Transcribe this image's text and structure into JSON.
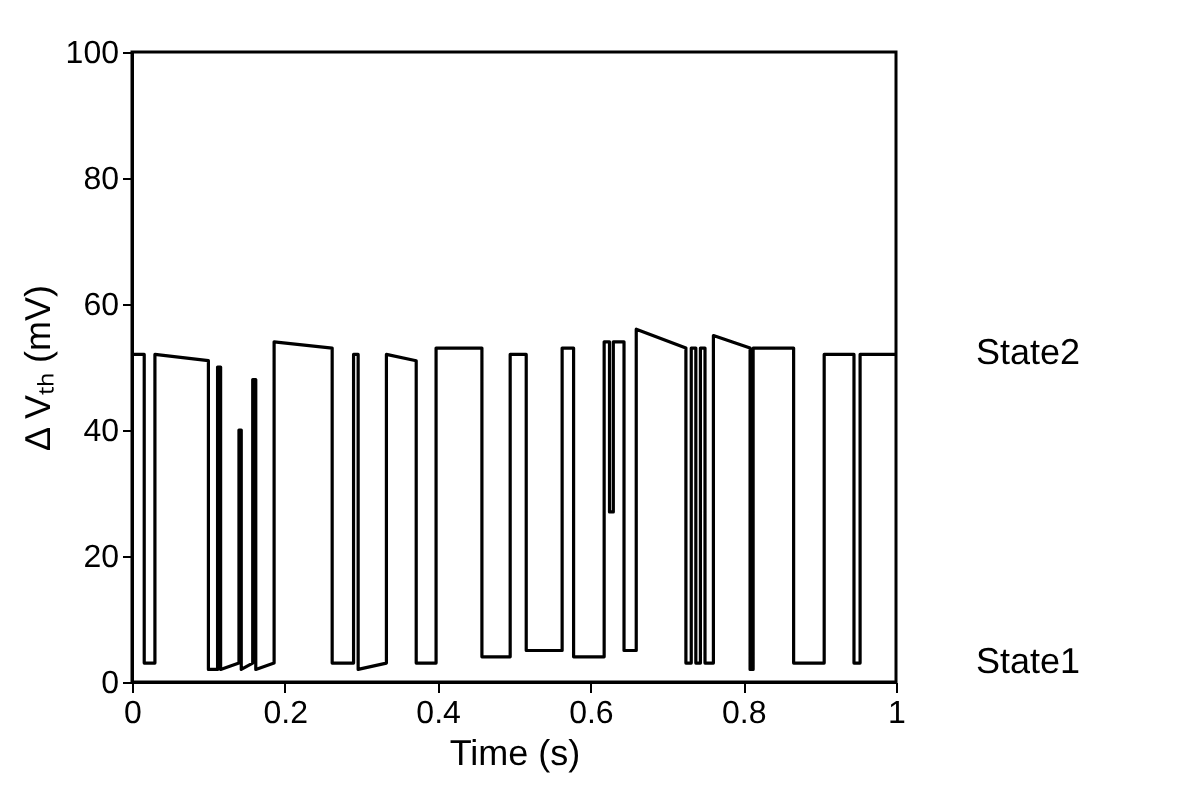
{
  "chart_data": {
    "type": "line",
    "xlabel": "Time (s)",
    "ylabel": "Δ Vₜₕ (mV)",
    "x": [
      0,
      0.016,
      0.016,
      0.03,
      0.03,
      0.1,
      0.1,
      0.112,
      0.112,
      0.116,
      0.116,
      0.14,
      0.14,
      0.143,
      0.143,
      0.158,
      0.158,
      0.162,
      0.162,
      0.186,
      0.186,
      0.262,
      0.262,
      0.29,
      0.29,
      0.296,
      0.296,
      0.333,
      0.333,
      0.372,
      0.372,
      0.398,
      0.398,
      0.458,
      0.458,
      0.495,
      0.495,
      0.516,
      0.516,
      0.563,
      0.563,
      0.578,
      0.578,
      0.582,
      0.582,
      0.618,
      0.618,
      0.625,
      0.625,
      0.63,
      0.63,
      0.644,
      0.644,
      0.66,
      0.66,
      0.725,
      0.725,
      0.732,
      0.732,
      0.738,
      0.738,
      0.744,
      0.744,
      0.75,
      0.75,
      0.761,
      0.761,
      0.809,
      0.809,
      0.813,
      0.813,
      0.866,
      0.866,
      0.906,
      0.906,
      0.945,
      0.945,
      0.953,
      0.953,
      1
    ],
    "values": [
      52,
      52,
      3,
      3,
      52,
      51,
      2,
      2,
      50,
      50,
      2,
      3,
      40,
      40,
      2,
      3,
      48,
      48,
      2,
      3,
      54,
      53,
      3,
      3,
      52,
      52,
      2,
      3,
      52,
      51,
      3,
      3,
      53,
      53,
      4,
      4,
      52,
      52,
      5,
      5,
      53,
      53,
      4,
      4,
      4,
      4,
      54,
      54,
      27,
      27,
      54,
      54,
      5,
      5,
      56,
      53,
      3,
      3,
      53,
      53,
      3,
      3,
      53,
      53,
      3,
      3,
      55,
      53,
      2,
      2,
      53,
      53,
      3,
      3,
      52,
      52,
      3,
      3,
      52,
      52
    ],
    "color": "#000000",
    "xlim": [
      0,
      1
    ],
    "ylim": [
      0,
      100
    ],
    "xticks": [
      {
        "value": 0,
        "label": "0"
      },
      0.2,
      0.4,
      0.6,
      0.8,
      {
        "value": 1,
        "label": "1"
      }
    ],
    "yticks": [
      0,
      20,
      40,
      60,
      80,
      100
    ],
    "grid": false,
    "marker": "none",
    "line_style": "solid",
    "annotations": [
      "State2",
      "State1"
    ]
  }
}
